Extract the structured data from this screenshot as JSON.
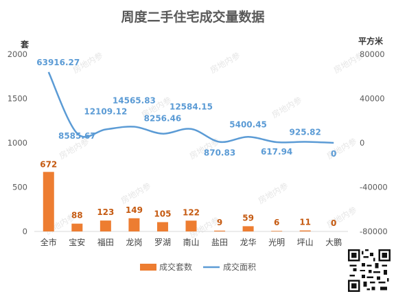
{
  "chart_data": {
    "type": "bar",
    "title": "周度二手住宅成交量数据",
    "left_axis_unit": "套",
    "right_axis_unit": "平方米",
    "categories": [
      "全市",
      "宝安",
      "福田",
      "龙岗",
      "罗湖",
      "南山",
      "盐田",
      "龙华",
      "光明",
      "坪山",
      "大鹏"
    ],
    "series": [
      {
        "name": "成交套数",
        "type": "bar",
        "axis": "left",
        "color": "#ED7D31",
        "values": [
          672,
          88,
          123,
          149,
          105,
          122,
          9,
          59,
          6,
          11,
          0
        ],
        "labels": [
          "672",
          "88",
          "123",
          "149",
          "105",
          "122",
          "9",
          "59",
          "6",
          "11",
          "0"
        ]
      },
      {
        "name": "成交面积",
        "type": "line",
        "axis": "right",
        "color": "#5B9BD5",
        "values": [
          63916.27,
          8585.67,
          12109.12,
          14565.83,
          8256.46,
          12584.15,
          870.83,
          5400.45,
          617.94,
          925.82,
          0
        ],
        "labels": [
          "63916.27",
          "8585.67",
          "12109.12",
          "14565.83",
          "8256.46",
          "12584.15",
          "870.83",
          "5400.45",
          "617.94",
          "925.82",
          "0"
        ]
      }
    ],
    "left_axis": {
      "min": 0,
      "max": 2000,
      "ticks": [
        "0",
        "500",
        "1000",
        "1500",
        "2000"
      ]
    },
    "right_axis": {
      "min": -80000,
      "max": 80000,
      "ticks": [
        "-80000",
        "-40000",
        "0",
        "40000",
        "80000"
      ]
    },
    "grid": false,
    "legend_position": "bottom"
  },
  "watermark": {
    "text": "房地内参"
  }
}
